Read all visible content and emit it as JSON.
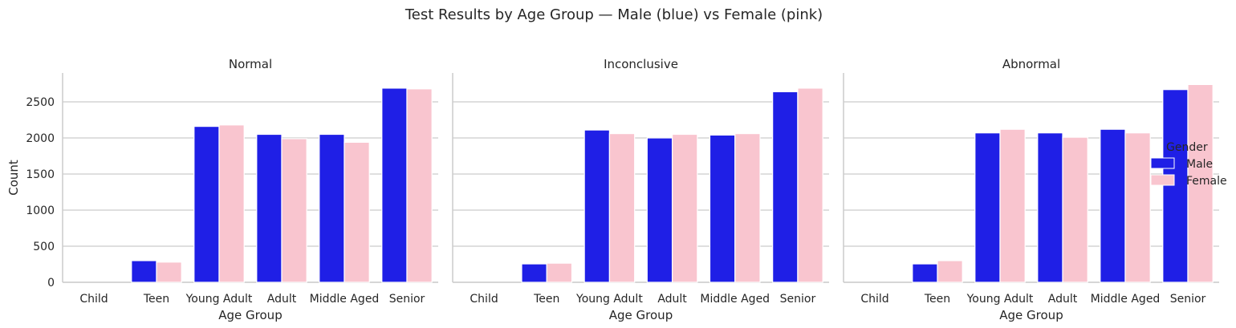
{
  "chart_data": {
    "type": "bar",
    "title": "Test Results by Age Group — Male (blue) vs Female (pink)",
    "xlabel": "Age Group",
    "ylabel": "Count",
    "ylim": [
      0,
      2900
    ],
    "yticks": [
      0,
      500,
      1000,
      1500,
      2000,
      2500
    ],
    "grid": true,
    "categories": [
      "Child",
      "Teen",
      "Young Adult",
      "Adult",
      "Middle Aged",
      "Senior"
    ],
    "legend": {
      "title": "Gender",
      "placement": "right",
      "entries": [
        {
          "label": "Male",
          "color": "#1f1fe6"
        },
        {
          "label": "Female",
          "color": "#f9c5cf"
        }
      ]
    },
    "panels": [
      {
        "title": "Normal",
        "series": [
          {
            "name": "Male",
            "color": "#1f1fe6",
            "values": [
              0,
              300,
              2160,
              2050,
              2050,
              2690
            ]
          },
          {
            "name": "Female",
            "color": "#f9c5cf",
            "values": [
              0,
              280,
              2180,
              1990,
              1940,
              2680
            ]
          }
        ]
      },
      {
        "title": "Inconclusive",
        "series": [
          {
            "name": "Male",
            "color": "#1f1fe6",
            "values": [
              0,
              255,
              2110,
              2000,
              2040,
              2640
            ]
          },
          {
            "name": "Female",
            "color": "#f9c5cf",
            "values": [
              0,
              265,
              2060,
              2050,
              2060,
              2690
            ]
          }
        ]
      },
      {
        "title": "Abnormal",
        "series": [
          {
            "name": "Male",
            "color": "#1f1fe6",
            "values": [
              0,
              255,
              2070,
              2070,
              2120,
              2670
            ]
          },
          {
            "name": "Female",
            "color": "#f9c5cf",
            "values": [
              0,
              300,
              2120,
              2010,
              2070,
              2740
            ]
          }
        ]
      }
    ]
  }
}
